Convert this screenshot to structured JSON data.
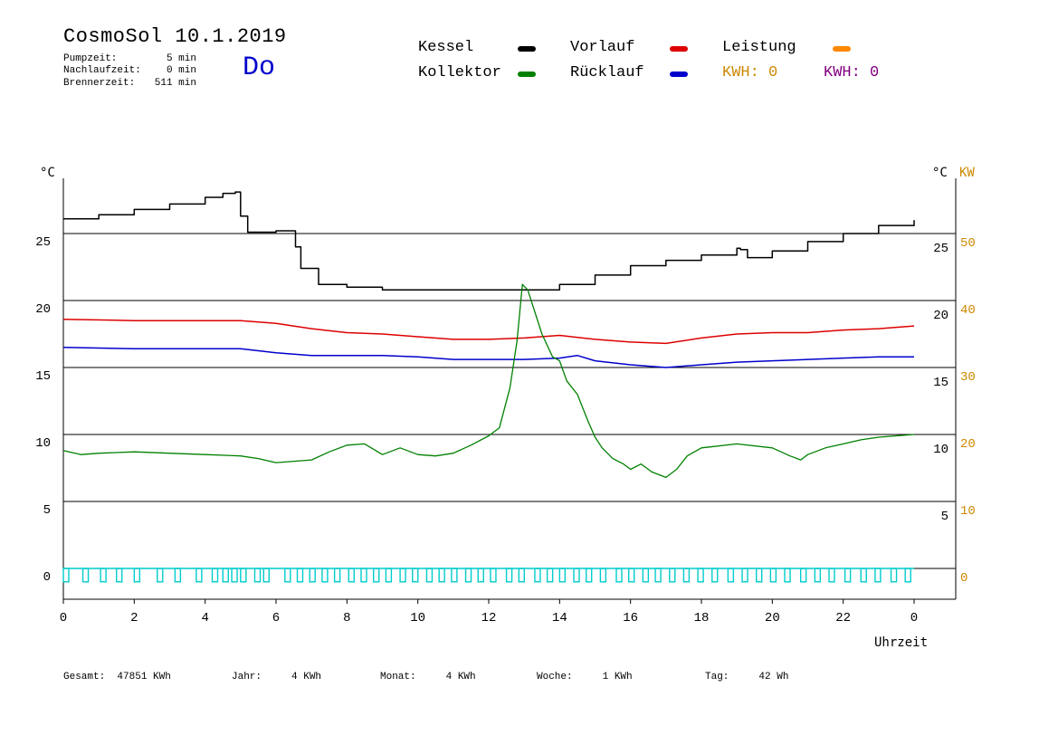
{
  "header": {
    "title": "CosmoSol 10.1.2019",
    "pumpzeit_label": "Pumpzeit:",
    "pumpzeit_value": "5 min",
    "nachlaufzeit_label": "Nachlaufzeit:",
    "nachlaufzeit_value": "0 min",
    "brennerzeit_label": "Brennerzeit:",
    "brennerzeit_value": "511 min",
    "day": "Do"
  },
  "legend": {
    "kessel": "Kessel",
    "kollektor": "Kollektor",
    "vorlauf": "Vorlauf",
    "ruecklauf": "Rücklauf",
    "leistung": "Leistung",
    "kwh1": "KWH: 0",
    "kwh2": "KWH: 0"
  },
  "colors": {
    "kessel": "#000000",
    "kollektor": "#008000",
    "vorlauf": "#dd0000",
    "ruecklauf": "#0000cc",
    "leistung": "#ff8800",
    "kwh2": "#800080",
    "pump": "#00cccc",
    "kw_axis": "#cc8800"
  },
  "footer": {
    "gesamt": "Gesamt:  47851 KWh",
    "jahr": "Jahr:     4 KWh",
    "monat": "Monat:     4 KWh",
    "woche": "Woche:     1 KWh",
    "tag": "Tag:     42 Wh"
  },
  "chart_data": {
    "type": "line",
    "xlabel": "Uhrzeit",
    "ylabel_left": "°C",
    "ylabel_right_c": "°C",
    "ylabel_right_kw": "KW",
    "xlim": [
      0,
      24
    ],
    "ylim": [
      -2,
      30
    ],
    "x_ticks": [
      "0",
      "2",
      "4",
      "6",
      "8",
      "10",
      "12",
      "14",
      "16",
      "18",
      "20",
      "22",
      "0"
    ],
    "y_ticks_left": [
      0,
      5,
      10,
      15,
      20,
      25
    ],
    "y_ticks_right_c": [
      0,
      5,
      10,
      15,
      20,
      25
    ],
    "y_ticks_right_kw": [
      0,
      10,
      20,
      30,
      40,
      50
    ],
    "grid": true,
    "series": [
      {
        "name": "Kessel",
        "key": "kessel",
        "x": [
          0,
          1,
          2,
          3,
          4,
          4.5,
          4.85,
          5.0,
          5.2,
          6.0,
          6.4,
          6.55,
          6.7,
          7.2,
          8.0,
          9.0,
          10.0,
          11.0,
          12.0,
          13.0,
          13.8,
          14.0,
          15.0,
          16.0,
          17.0,
          18.0,
          19.0,
          19.1,
          19.3,
          20.0,
          21.0,
          22.0,
          23.0,
          24.0
        ],
        "y": [
          26.1,
          26.4,
          26.8,
          27.2,
          27.7,
          28.0,
          28.1,
          26.3,
          25.1,
          25.2,
          25.2,
          24.0,
          22.4,
          21.2,
          21.0,
          20.8,
          20.8,
          20.8,
          20.8,
          20.8,
          20.8,
          21.2,
          21.9,
          22.6,
          23.0,
          23.4,
          23.9,
          23.8,
          23.2,
          23.7,
          24.4,
          25.0,
          25.6,
          26.0
        ]
      },
      {
        "name": "Vorlauf",
        "key": "vorlauf",
        "x": [
          0,
          2,
          4,
          5,
          6,
          7,
          8,
          9,
          10,
          11,
          12,
          13,
          14,
          15,
          16,
          17,
          18,
          19,
          20,
          21,
          22,
          23,
          24
        ],
        "y": [
          18.6,
          18.5,
          18.5,
          18.5,
          18.3,
          17.9,
          17.6,
          17.5,
          17.3,
          17.1,
          17.1,
          17.2,
          17.4,
          17.1,
          16.9,
          16.8,
          17.2,
          17.5,
          17.6,
          17.6,
          17.8,
          17.9,
          18.1
        ]
      },
      {
        "name": "Rücklauf",
        "key": "ruecklauf",
        "x": [
          0,
          2,
          4,
          5,
          6,
          7,
          8,
          9,
          10,
          11,
          12,
          13,
          14,
          14.5,
          15,
          16,
          17,
          18,
          19,
          20,
          21,
          22,
          23,
          24
        ],
        "y": [
          16.5,
          16.4,
          16.4,
          16.4,
          16.1,
          15.9,
          15.9,
          15.9,
          15.8,
          15.6,
          15.6,
          15.6,
          15.7,
          15.9,
          15.5,
          15.2,
          15.0,
          15.2,
          15.4,
          15.5,
          15.6,
          15.7,
          15.8,
          15.8
        ]
      },
      {
        "name": "Kollektor",
        "key": "kollektor",
        "x": [
          0,
          0.5,
          1,
          2,
          3,
          4,
          5,
          5.5,
          6,
          6.5,
          7,
          7.5,
          8,
          8.5,
          9,
          9.5,
          10,
          10.5,
          11,
          11.5,
          12,
          12.3,
          12.6,
          12.8,
          12.95,
          13.1,
          13.5,
          13.8,
          14.0,
          14.2,
          14.5,
          14.8,
          15.0,
          15.2,
          15.5,
          15.8,
          16.0,
          16.3,
          16.6,
          17.0,
          17.3,
          17.6,
          18.0,
          19.0,
          20.0,
          20.5,
          20.8,
          21.0,
          21.5,
          22.0,
          22.5,
          23.0,
          23.5,
          24.0
        ],
        "y": [
          8.8,
          8.5,
          8.6,
          8.7,
          8.6,
          8.5,
          8.4,
          8.2,
          7.9,
          8.0,
          8.1,
          8.7,
          9.2,
          9.3,
          8.5,
          9.0,
          8.5,
          8.4,
          8.6,
          9.2,
          9.9,
          10.5,
          13.5,
          17.0,
          21.2,
          20.8,
          17.5,
          15.8,
          15.5,
          14.0,
          13.0,
          11.0,
          9.8,
          9.0,
          8.2,
          7.8,
          7.4,
          7.8,
          7.2,
          6.8,
          7.4,
          8.4,
          9.0,
          9.3,
          9.0,
          8.4,
          8.1,
          8.5,
          9.0,
          9.3,
          9.6,
          9.8,
          9.9,
          10.0
        ]
      }
    ],
    "pump_pulses": {
      "name": "Pumpe",
      "key": "pump",
      "baseline": 0,
      "pulse_height": -1,
      "starts_hours": [
        0.0,
        0.55,
        1.05,
        1.5,
        2.0,
        2.65,
        3.15,
        3.75,
        4.2,
        4.5,
        4.75,
        5.0,
        5.4,
        5.65,
        6.25,
        6.6,
        6.95,
        7.3,
        7.65,
        8.05,
        8.4,
        8.75,
        9.1,
        9.5,
        9.85,
        10.25,
        10.6,
        10.95,
        11.35,
        11.7,
        12.05,
        12.5,
        12.85,
        13.3,
        13.65,
        14.0,
        14.4,
        14.75,
        15.15,
        15.6,
        15.95,
        16.35,
        16.7,
        17.1,
        17.5,
        17.9,
        18.3,
        18.75,
        19.15,
        19.55,
        19.95,
        20.35,
        20.8,
        21.2,
        21.6,
        22.05,
        22.5,
        22.9,
        23.35,
        23.75
      ]
    }
  }
}
